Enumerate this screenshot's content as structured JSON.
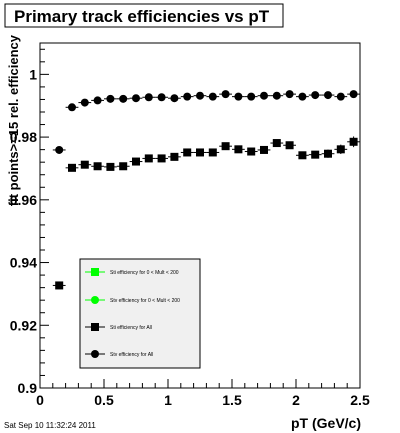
{
  "footer": {
    "timestamp": "Sat Sep 10 11:32:24 2011"
  },
  "chart_data": {
    "type": "scatter",
    "title": "Primary track efficiencies vs pT",
    "xlabel": "pT (GeV/c)",
    "ylabel": "fit points>=15 rel. efficiency",
    "xlim": [
      0,
      2.5
    ],
    "ylim": [
      0.9,
      1.01
    ],
    "x_ticks": [
      0,
      0.5,
      1,
      1.5,
      2,
      2.5
    ],
    "x_tick_labels": [
      "0",
      "0.5",
      "1",
      "1.5",
      "2",
      "2.5"
    ],
    "y_ticks": [
      0.9,
      0.92,
      0.94,
      0.96,
      0.98,
      1
    ],
    "y_tick_labels": [
      "0.9",
      "0.92",
      "0.94",
      "0.96",
      "0.98",
      "1"
    ],
    "grid": false,
    "legend_position": "bottom-left",
    "series": [
      {
        "name": "Sti efficiency  for 0 < Mult < 200",
        "marker": "square",
        "color": "#00ff00",
        "x": [],
        "y": []
      },
      {
        "name": "Stv efficiency  for 0 < Mult < 200",
        "marker": "circle",
        "color": "#00ff00",
        "x": [],
        "y": []
      },
      {
        "name": "Sti efficiency  for All",
        "marker": "square",
        "color": "#000000",
        "x": [
          0.15,
          0.25,
          0.35,
          0.45,
          0.55,
          0.65,
          0.75,
          0.85,
          0.95,
          1.05,
          1.15,
          1.25,
          1.35,
          1.45,
          1.55,
          1.65,
          1.75,
          1.85,
          1.95,
          2.05,
          2.15,
          2.25,
          2.35,
          2.45
        ],
        "y": [
          0.9327,
          0.9702,
          0.9712,
          0.9707,
          0.9705,
          0.9707,
          0.9722,
          0.9732,
          0.9732,
          0.9737,
          0.9751,
          0.9751,
          0.9751,
          0.9771,
          0.9761,
          0.9754,
          0.9759,
          0.9781,
          0.9774,
          0.9742,
          0.9744,
          0.9747,
          0.9761,
          0.9785
        ],
        "yerr": [
          0,
          0.0005,
          0.0005,
          0.0005,
          0.0005,
          0.0005,
          0.0005,
          0.0005,
          0.0005,
          0.0005,
          0.0005,
          0.0005,
          0.0005,
          0.0005,
          0.0005,
          0.0005,
          0.0005,
          0.0007,
          0.0007,
          0.0009,
          0.0011,
          0.0013,
          0.0015,
          0.0017
        ]
      },
      {
        "name": "Stv efficiency  for All",
        "marker": "circle",
        "color": "#000000",
        "x": [
          0.15,
          0.25,
          0.35,
          0.45,
          0.55,
          0.65,
          0.75,
          0.85,
          0.95,
          1.05,
          1.15,
          1.25,
          1.35,
          1.45,
          1.55,
          1.65,
          1.75,
          1.85,
          1.95,
          2.05,
          2.15,
          2.25,
          2.35,
          2.45
        ],
        "y": [
          0.9759,
          0.9895,
          0.991,
          0.9917,
          0.9922,
          0.9922,
          0.9924,
          0.9927,
          0.9927,
          0.9924,
          0.9929,
          0.9932,
          0.9929,
          0.9937,
          0.9929,
          0.9929,
          0.9932,
          0.9932,
          0.9937,
          0.9929,
          0.9934,
          0.9934,
          0.9929,
          0.9937
        ],
        "yerr": [
          0,
          0.0004,
          0.0004,
          0.0004,
          0.0004,
          0.0004,
          0.0004,
          0.0004,
          0.0004,
          0.0004,
          0.0004,
          0.0004,
          0.0004,
          0.0004,
          0.0004,
          0.0004,
          0.0004,
          0.0005,
          0.0005,
          0.0006,
          0.0007,
          0.0008,
          0.0009,
          0.001
        ]
      }
    ]
  }
}
